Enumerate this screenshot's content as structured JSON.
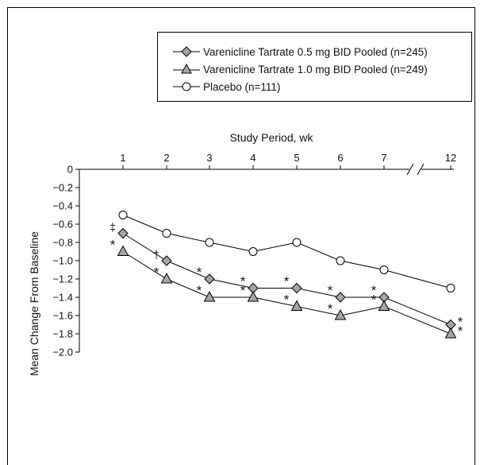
{
  "chart_data": {
    "type": "line",
    "title": "",
    "xlabel": "Study Period, wk",
    "ylabel": "Mean Change From Baseline",
    "x": [
      1,
      2,
      3,
      4,
      5,
      6,
      7,
      12
    ],
    "x_tick_labels": [
      "1",
      "2",
      "3",
      "4",
      "5",
      "6",
      "7",
      "12"
    ],
    "y_ticks": [
      0,
      -0.2,
      -0.4,
      -0.6,
      -0.8,
      -1.0,
      -1.2,
      -1.4,
      -1.6,
      -1.8,
      -2.0
    ],
    "y_tick_labels": [
      "0",
      "−0.2",
      "−0.4",
      "−0.6",
      "−0.8",
      "−1.0",
      "−1.2",
      "−1.4",
      "−1.6",
      "−1.8",
      "−2.0"
    ],
    "ylim": [
      -2.0,
      0
    ],
    "x_axis_position": "top",
    "x_axis_break": "between 7 and 12",
    "grid": false,
    "legend_position": "top-right",
    "series": [
      {
        "name": "Varenicline Tartrate 0.5 mg BID Pooled (n=245)",
        "marker": "diamond",
        "marker_color": "#a6a6a6",
        "values": [
          -0.7,
          -1.0,
          -1.2,
          -1.3,
          -1.3,
          -1.4,
          -1.4,
          -1.7
        ],
        "annotations": [
          "‡",
          "†",
          "*",
          "*",
          "*",
          "*",
          "*",
          "*"
        ]
      },
      {
        "name": "Varenicline Tartrate 1.0 mg BID Pooled (n=249)",
        "marker": "triangle",
        "marker_color": "#a6a6a6",
        "values": [
          -0.9,
          -1.2,
          -1.4,
          -1.4,
          -1.5,
          -1.6,
          -1.5,
          -1.8
        ],
        "annotations": [
          "*",
          "*",
          "*",
          "*",
          "*",
          "*",
          "*",
          "*"
        ]
      },
      {
        "name": "Placebo (n=111)",
        "marker": "circle",
        "marker_color": "#ffffff",
        "values": [
          -0.5,
          -0.7,
          -0.8,
          -0.9,
          -0.8,
          -1.0,
          -1.1,
          -1.3
        ],
        "annotations": []
      }
    ]
  }
}
